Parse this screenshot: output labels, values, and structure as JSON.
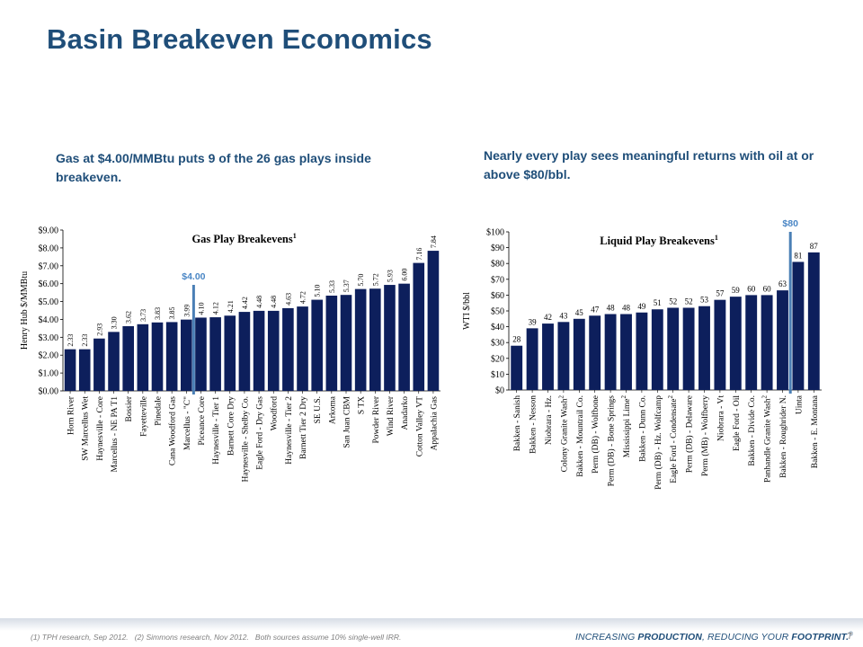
{
  "title": "Basin Breakeven Economics",
  "subtitle_left": "Gas at $4.00/MMBtu puts 9 of the 26 gas plays inside breakeven.",
  "subtitle_right": "Nearly every play sees meaningful returns with oil at or above $80/bbl.",
  "colors": {
    "bar": "#0d1f5c",
    "marker": "#4a7fb5",
    "marker_text": "#4a86c5",
    "title": "#1f4e79"
  },
  "chart_data": [
    {
      "type": "bar",
      "title": "Gas Play Breakevens",
      "title_sup": "1",
      "ylabel": "Henry Hub $/MMBtu",
      "ylim": [
        0,
        9
      ],
      "ytick_step": 1,
      "ytick_labels": [
        "$0.00",
        "$1.00",
        "$2.00",
        "$3.00",
        "$4.00",
        "$5.00",
        "$6.00",
        "$7.00",
        "$8.00",
        "$9.00"
      ],
      "grid": false,
      "categories": [
        "Horn River",
        "SW Marcellus Wet",
        "Haynesville - Core",
        "Marcellus - NE PA T1",
        "Bossier",
        "Fayetteville",
        "Pinedale",
        "Cana Woodford Gas",
        "Marcellus - \"C\"",
        "Piceance Core",
        "Haynesville - Tier 1",
        "Barnett Core Dry",
        "Haynesville - Shelby Co.",
        "Eagle Ford - Dry Gas",
        "Woodford",
        "Haynesville - Tier 2",
        "Barnett Tier 2 Dry",
        "SE U.S.",
        "Arkoma",
        "San Juan CBM",
        "S TX",
        "Powder River",
        "Wind River",
        "Anadarko",
        "Cotton Valley VT",
        "Appalachia Gas"
      ],
      "category_sups": [
        "",
        "",
        "",
        "",
        "",
        "",
        "",
        "",
        "",
        "",
        "",
        "",
        "",
        "",
        "",
        "",
        "",
        "",
        "",
        "",
        "",
        "",
        "",
        "",
        "",
        ""
      ],
      "values": [
        2.33,
        2.33,
        2.93,
        3.3,
        3.62,
        3.73,
        3.83,
        3.85,
        3.99,
        4.1,
        4.12,
        4.21,
        4.42,
        4.48,
        4.48,
        4.63,
        4.72,
        5.1,
        5.33,
        5.37,
        5.7,
        5.72,
        5.93,
        6.0,
        7.16,
        7.84
      ],
      "value_labels": [
        "2.33",
        "2.33",
        "2.93",
        "3.30",
        "3.62",
        "3.73",
        "3.83",
        "3.85",
        "3.99",
        "4.10",
        "4.12",
        "4.21",
        "4.42",
        "4.48",
        "4.48",
        "4.63",
        "4.72",
        "5.10",
        "5.33",
        "5.37",
        "5.70",
        "5.72",
        "5.93",
        "6.00",
        "7.16",
        "7.84"
      ],
      "value_label_rotated": true,
      "marker": {
        "label": "$4.00",
        "value": 4.0,
        "after_index": 8
      }
    },
    {
      "type": "bar",
      "title": "Liquid Play Breakevens",
      "title_sup": "1",
      "ylabel": "WTI $/bbl",
      "ylim": [
        0,
        100
      ],
      "ytick_step": 10,
      "ytick_labels": [
        "$0",
        "$10",
        "$20",
        "$30",
        "$40",
        "$50",
        "$60",
        "$70",
        "$80",
        "$90",
        "$100"
      ],
      "grid": false,
      "categories": [
        "Bakken - Sanish",
        "Bakken - Nesson",
        "Niobrara - Hz.",
        "Colony Granite Wash",
        "Bakken - Mountrail Co.",
        "Perm (DB) - Wolfbone",
        "Perm (DB) - Bone Springs",
        "Mississippi Lime",
        "Bakken - Dunn Co.",
        "Perm (DB) - Hz. Wolfcamp",
        "Eagle Ford - Condensate",
        "Perm (DB) - Delaware",
        "Perm (MB) - Wolfberry",
        "Niobrara - Vt",
        "Eagle Ford - Oil",
        "Bakken - Divide Co.",
        "Panhandle Granite Wash",
        "Bakken - Roughrider N.",
        "Uinta",
        "Bakken - E. Montana"
      ],
      "category_sups": [
        "",
        "",
        "",
        "2",
        "",
        "",
        "",
        "2",
        "",
        "",
        "2",
        "",
        "",
        "",
        "",
        "",
        "2",
        "",
        "",
        ""
      ],
      "values": [
        28,
        39,
        42,
        43,
        45,
        47,
        48,
        48,
        49,
        51,
        52,
        52,
        53,
        57,
        59,
        60,
        60,
        63,
        81,
        87
      ],
      "value_labels": [
        "28",
        "39",
        "42",
        "43",
        "45",
        "47",
        "48",
        "48",
        "49",
        "51",
        "52",
        "52",
        "53",
        "57",
        "59",
        "60",
        "60",
        "63",
        "81",
        "87"
      ],
      "value_label_rotated": false,
      "marker": {
        "label": "$80",
        "value": 80,
        "after_index": 17
      }
    }
  ],
  "footer": {
    "footnote": "(1) TPH research, Sep 2012.   (2) Simmons research, Nov 2012.   Both sources assume 10% single-well IRR.",
    "tagline_a": "INCREASING ",
    "tagline_b": "PRODUCTION",
    "tagline_c": ", REDUCING YOUR ",
    "tagline_d": "FOOTPRINT.",
    "tagline_mark": "®",
    "page_number": "7"
  }
}
